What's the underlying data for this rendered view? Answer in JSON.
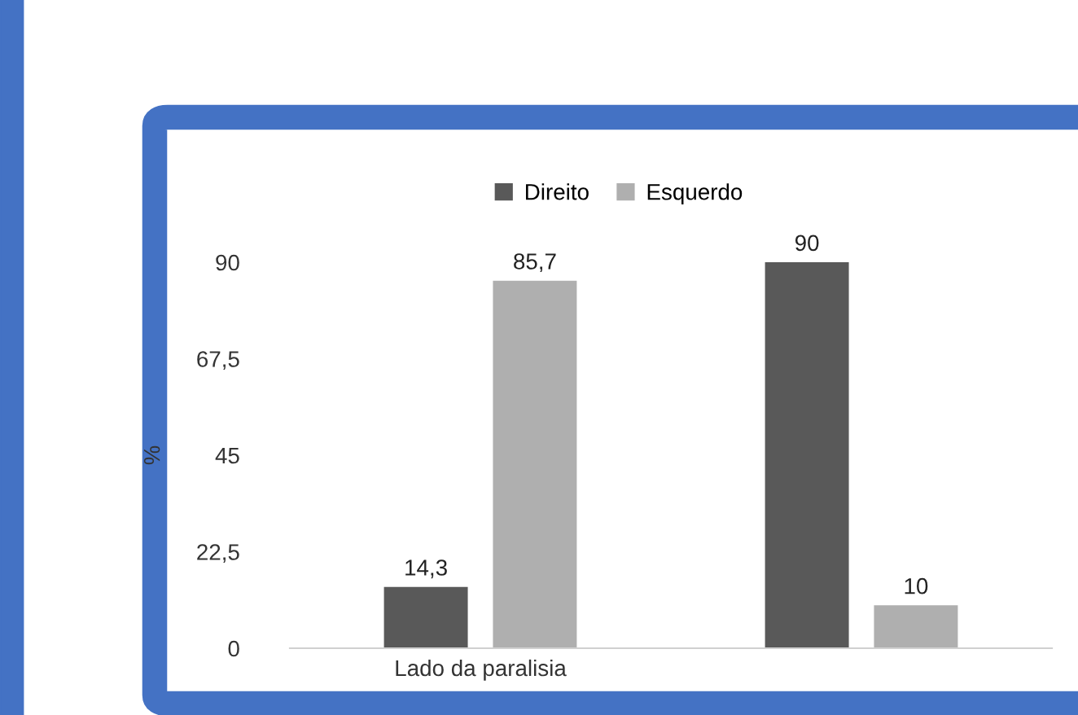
{
  "chart_data": {
    "type": "bar",
    "categories": [
      "Lado da paralisia",
      null
    ],
    "ylabel": "%",
    "series": [
      {
        "name": "Direito",
        "color": "#595959",
        "values": [
          14.3,
          90
        ],
        "value_labels": [
          "14,3",
          "90"
        ]
      },
      {
        "name": "Esquerdo",
        "color": "#afafaf",
        "values": [
          85.7,
          10
        ],
        "value_labels": [
          "85,7",
          "10"
        ]
      }
    ],
    "ylim": [
      0,
      90
    ],
    "yticks": [
      0,
      {
        "value": 22.5,
        "label": "22,5"
      },
      45,
      {
        "value": 67.5,
        "label": "67,5"
      },
      90
    ],
    "grid": false,
    "legend": "top"
  }
}
